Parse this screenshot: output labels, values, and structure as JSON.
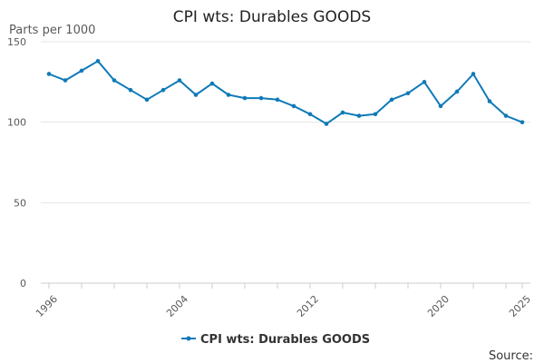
{
  "chart_data": {
    "type": "line",
    "title": "CPI wts: Durables GOODS",
    "ylabel": "Parts per 1000",
    "xlabel": "",
    "ylim": [
      0,
      150
    ],
    "yticks": [
      0,
      50,
      100,
      150
    ],
    "xticks": [
      1996,
      2004,
      2012,
      2020,
      2025
    ],
    "grid": "horizontal",
    "legend_position": "bottom",
    "series": [
      {
        "name": "CPI wts: Durables GOODS",
        "color": "#0f7ab7",
        "x": [
          1996,
          1997,
          1998,
          1999,
          2000,
          2001,
          2002,
          2003,
          2004,
          2005,
          2006,
          2007,
          2008,
          2009,
          2010,
          2011,
          2012,
          2013,
          2014,
          2015,
          2016,
          2017,
          2018,
          2019,
          2020,
          2021,
          2022,
          2023,
          2024,
          2025
        ],
        "values": [
          130,
          126,
          132,
          138,
          126,
          120,
          114,
          120,
          126,
          117,
          124,
          117,
          115,
          115,
          114,
          110,
          105,
          99,
          106,
          104,
          105,
          114,
          118,
          125,
          110,
          119,
          130,
          113,
          104,
          100
        ]
      }
    ]
  },
  "source_label": "Source:"
}
